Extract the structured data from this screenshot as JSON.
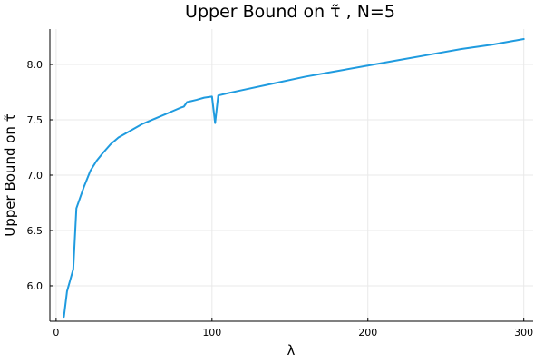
{
  "chart_data": {
    "type": "line",
    "title": "Upper Bound on τ̃ , N=5",
    "xlabel": "λ",
    "ylabel": "Upper Bound on τ̃",
    "xlim": [
      -4,
      306
    ],
    "ylim": [
      5.68,
      8.32
    ],
    "xticks": [
      0,
      100,
      200,
      300
    ],
    "yticks": [
      6.0,
      6.5,
      7.0,
      7.5,
      8.0
    ],
    "xtick_labels": [
      "0",
      "100",
      "200",
      "300"
    ],
    "ytick_labels": [
      "6.0",
      "6.5",
      "7.0",
      "7.5",
      "8.0"
    ],
    "grid": true,
    "legend": "none",
    "series": [
      {
        "name": "upper bound",
        "color": "#1f9bdf",
        "x": [
          5,
          7,
          9,
          11,
          13,
          15,
          18,
          22,
          26,
          30,
          35,
          40,
          45,
          50,
          55,
          60,
          65,
          70,
          75,
          80,
          82,
          84,
          90,
          95,
          100,
          102,
          104,
          110,
          120,
          140,
          160,
          180,
          200,
          220,
          240,
          260,
          280,
          300
        ],
        "y": [
          5.72,
          5.95,
          6.05,
          6.15,
          6.7,
          6.78,
          6.9,
          7.04,
          7.13,
          7.2,
          7.28,
          7.34,
          7.38,
          7.42,
          7.46,
          7.49,
          7.52,
          7.55,
          7.58,
          7.61,
          7.62,
          7.66,
          7.68,
          7.7,
          7.71,
          7.47,
          7.72,
          7.74,
          7.77,
          7.83,
          7.89,
          7.94,
          7.99,
          8.04,
          8.09,
          8.14,
          8.18,
          8.23
        ]
      }
    ]
  }
}
